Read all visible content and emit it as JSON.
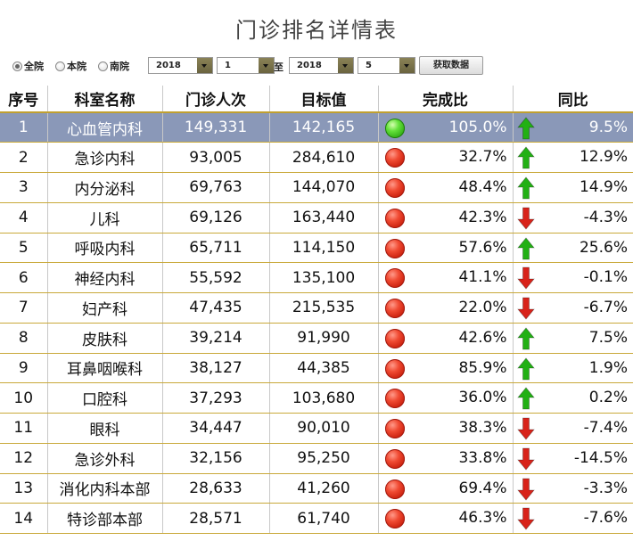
{
  "title": "门诊排名详情表",
  "filters": {
    "scope_options": [
      {
        "label": "全院",
        "checked": true
      },
      {
        "label": "本院",
        "checked": false
      },
      {
        "label": "南院",
        "checked": false
      }
    ],
    "start_year": "2018",
    "start_month": "1",
    "range_separator": "至",
    "end_year": "2018",
    "end_month": "5",
    "fetch_button": "获取数据"
  },
  "table": {
    "headers": [
      "序号",
      "科室名称",
      "门诊人次",
      "目标值",
      "完成比",
      "同比"
    ],
    "rows": [
      {
        "rank": "1",
        "dept": "心血管内科",
        "visits": "149,331",
        "target": "142,165",
        "completion": "105.0%",
        "status": "green",
        "yoy": "9.5%",
        "trend": "up",
        "highlighted": true
      },
      {
        "rank": "2",
        "dept": "急诊内科",
        "visits": "93,005",
        "target": "284,610",
        "completion": "32.7%",
        "status": "red",
        "yoy": "12.9%",
        "trend": "up"
      },
      {
        "rank": "3",
        "dept": "内分泌科",
        "visits": "69,763",
        "target": "144,070",
        "completion": "48.4%",
        "status": "red",
        "yoy": "14.9%",
        "trend": "up"
      },
      {
        "rank": "4",
        "dept": "儿科",
        "visits": "69,126",
        "target": "163,440",
        "completion": "42.3%",
        "status": "red",
        "yoy": "-4.3%",
        "trend": "down"
      },
      {
        "rank": "5",
        "dept": "呼吸内科",
        "visits": "65,711",
        "target": "114,150",
        "completion": "57.6%",
        "status": "red",
        "yoy": "25.6%",
        "trend": "up"
      },
      {
        "rank": "6",
        "dept": "神经内科",
        "visits": "55,592",
        "target": "135,100",
        "completion": "41.1%",
        "status": "red",
        "yoy": "-0.1%",
        "trend": "down"
      },
      {
        "rank": "7",
        "dept": "妇产科",
        "visits": "47,435",
        "target": "215,535",
        "completion": "22.0%",
        "status": "red",
        "yoy": "-6.7%",
        "trend": "down"
      },
      {
        "rank": "8",
        "dept": "皮肤科",
        "visits": "39,214",
        "target": "91,990",
        "completion": "42.6%",
        "status": "red",
        "yoy": "7.5%",
        "trend": "up"
      },
      {
        "rank": "9",
        "dept": "耳鼻咽喉科",
        "visits": "38,127",
        "target": "44,385",
        "completion": "85.9%",
        "status": "red",
        "yoy": "1.9%",
        "trend": "up"
      },
      {
        "rank": "10",
        "dept": "口腔科",
        "visits": "37,293",
        "target": "103,680",
        "completion": "36.0%",
        "status": "red",
        "yoy": "0.2%",
        "trend": "up"
      },
      {
        "rank": "11",
        "dept": "眼科",
        "visits": "34,447",
        "target": "90,010",
        "completion": "38.3%",
        "status": "red",
        "yoy": "-7.4%",
        "trend": "down"
      },
      {
        "rank": "12",
        "dept": "急诊外科",
        "visits": "32,156",
        "target": "95,250",
        "completion": "33.8%",
        "status": "red",
        "yoy": "-14.5%",
        "trend": "down"
      },
      {
        "rank": "13",
        "dept": "消化内科本部",
        "visits": "28,633",
        "target": "41,260",
        "completion": "69.4%",
        "status": "red",
        "yoy": "-3.3%",
        "trend": "down"
      },
      {
        "rank": "14",
        "dept": "特诊部本部",
        "visits": "28,571",
        "target": "61,740",
        "completion": "46.3%",
        "status": "red",
        "yoy": "-7.6%",
        "trend": "down"
      }
    ]
  },
  "colors": {
    "status_green": "#2aa510",
    "status_red": "#c41a08",
    "trend_up": "#22b014",
    "trend_down": "#d8231a",
    "highlight_row": "#8a98b8",
    "row_border": "#c9a93a"
  },
  "icons": {
    "status": "traffic-light-circle-icon",
    "trend_up": "arrow-up-icon",
    "trend_down": "arrow-down-icon"
  }
}
